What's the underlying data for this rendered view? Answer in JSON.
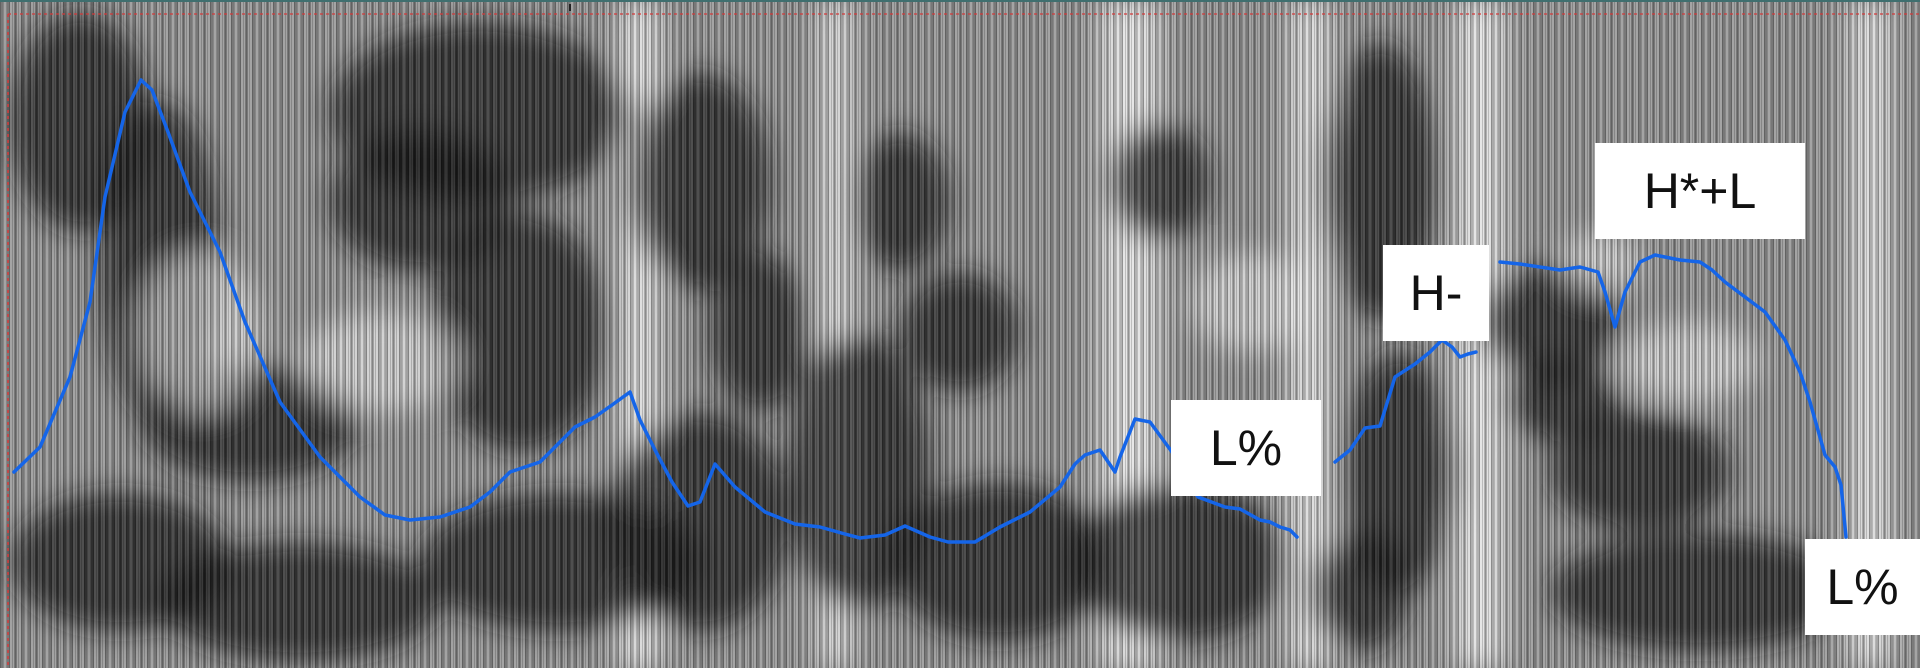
{
  "tone_labels": {
    "l_percent_1": "L%",
    "h_minus": "H-",
    "h_star_plus_l": "H*+L",
    "l_percent_2": "L%"
  },
  "colors": {
    "pitch_contour": "#1565e8",
    "spectrogram_dark": "#1a1a1a",
    "spectrogram_light": "#f4f4f4",
    "selection_border": "#d23a3a",
    "frame_top": "#3f6f6f",
    "label_background": "#ffffff",
    "label_text": "#111111"
  }
}
